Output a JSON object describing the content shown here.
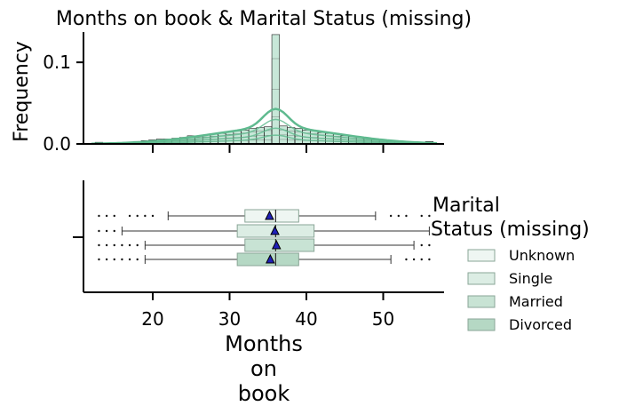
{
  "chart_data": {
    "type": "histogram+boxplot",
    "title": "Months on book & Marital Status (missing)",
    "histogram": {
      "ylabel": "Frequency",
      "y_ticks": [
        "0.0",
        "0.1"
      ],
      "ylim": [
        0,
        0.135
      ],
      "xlim": [
        11,
        57
      ],
      "bin_width": 1,
      "bins_total": [
        [
          13,
          0.002
        ],
        [
          14,
          0.0
        ],
        [
          15,
          0.0
        ],
        [
          16,
          0.0
        ],
        [
          17,
          0.002
        ],
        [
          18,
          0.003
        ],
        [
          19,
          0.004
        ],
        [
          20,
          0.005
        ],
        [
          21,
          0.006
        ],
        [
          22,
          0.006
        ],
        [
          23,
          0.007
        ],
        [
          24,
          0.008
        ],
        [
          25,
          0.01
        ],
        [
          26,
          0.01
        ],
        [
          27,
          0.011
        ],
        [
          28,
          0.012
        ],
        [
          29,
          0.013
        ],
        [
          30,
          0.015
        ],
        [
          31,
          0.016
        ],
        [
          32,
          0.017
        ],
        [
          33,
          0.019
        ],
        [
          34,
          0.02
        ],
        [
          35,
          0.021
        ],
        [
          36,
          0.134
        ],
        [
          37,
          0.022
        ],
        [
          38,
          0.02
        ],
        [
          39,
          0.019
        ],
        [
          40,
          0.017
        ],
        [
          41,
          0.016
        ],
        [
          42,
          0.014
        ],
        [
          43,
          0.013
        ],
        [
          44,
          0.012
        ],
        [
          45,
          0.01
        ],
        [
          46,
          0.009
        ],
        [
          47,
          0.008
        ],
        [
          48,
          0.007
        ],
        [
          49,
          0.006
        ],
        [
          50,
          0.005
        ],
        [
          51,
          0.004
        ],
        [
          52,
          0.003
        ],
        [
          53,
          0.002
        ],
        [
          54,
          0.002
        ],
        [
          55,
          0.001
        ],
        [
          56,
          0.003
        ]
      ],
      "kde_peak": 0.043,
      "color": "#5fba8f"
    },
    "boxplot": {
      "xlabel": "Months\non\nbook",
      "x_ticks": [
        20,
        30,
        40,
        50
      ],
      "series": [
        {
          "name": "Unknown",
          "whisker_low": 22,
          "q1": 32,
          "median": 36,
          "q3": 39,
          "whisker_high": 49,
          "mean": 35.2,
          "color": "#eef6f2",
          "outliers": [
            13,
            14,
            15,
            17,
            18,
            19,
            20,
            51,
            52,
            53,
            55,
            56
          ]
        },
        {
          "name": "Single",
          "whisker_low": 16,
          "q1": 31,
          "median": 36,
          "q3": 41,
          "whisker_high": 56,
          "mean": 35.9,
          "color": "#dcede4",
          "outliers": [
            13,
            14,
            15
          ]
        },
        {
          "name": "Married",
          "whisker_low": 19,
          "q1": 32,
          "median": 36,
          "q3": 41,
          "whisker_high": 54,
          "mean": 36.1,
          "color": "#c8e3d4",
          "outliers": [
            13,
            14,
            15,
            16,
            17,
            18,
            55,
            56
          ]
        },
        {
          "name": "Divorced",
          "whisker_low": 19,
          "q1": 31,
          "median": 36,
          "q3": 39,
          "whisker_high": 51,
          "mean": 35.3,
          "color": "#b5d8c4",
          "outliers": [
            13,
            14,
            15,
            16,
            17,
            18,
            53,
            54,
            55,
            56
          ]
        }
      ]
    },
    "legend": {
      "title": "Marital\nStatus (missing)",
      "entries": [
        "Unknown",
        "Single",
        "Married",
        "Divorced"
      ],
      "placement": "right"
    }
  }
}
